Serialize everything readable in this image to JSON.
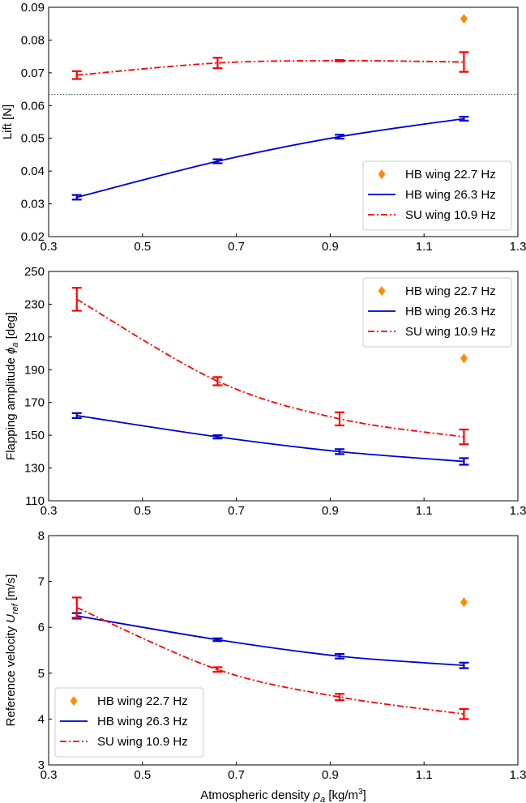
{
  "chart_data": [
    {
      "type": "line",
      "ylabel": "Lift [N]",
      "ylim": [
        0.02,
        0.09
      ],
      "yticks": [
        "0.02",
        "0.03",
        "0.04",
        "0.05",
        "0.06",
        "0.07",
        "0.08",
        "0.09"
      ],
      "xlim": [
        0.3,
        1.3
      ],
      "xticks": [
        "0.3",
        "0.5",
        "0.7",
        "0.9",
        "1.1",
        "1.3"
      ],
      "legend_position": "lower-right",
      "reference_line": 0.0634,
      "series": [
        {
          "name": "HB wing 22.7 Hz",
          "style": "marker",
          "x": [
            1.185
          ],
          "y": [
            0.0865
          ],
          "err": [
            0
          ]
        },
        {
          "name": "HB wing 26.3 Hz",
          "style": "solid",
          "x": [
            0.36,
            0.66,
            0.92,
            1.185
          ],
          "y": [
            0.032,
            0.043,
            0.0505,
            0.056
          ],
          "err": [
            0.0007,
            0.0006,
            0.0006,
            0.0006
          ]
        },
        {
          "name": "SU wing 10.9 Hz",
          "style": "dashdot",
          "x": [
            0.36,
            0.66,
            0.92,
            1.185
          ],
          "y": [
            0.0693,
            0.073,
            0.0737,
            0.0733
          ],
          "err": [
            0.0012,
            0.0016,
            0.0002,
            0.003
          ]
        }
      ]
    },
    {
      "type": "line",
      "ylabel": "Flapping amplitude",
      "ylabel_sym": "ϕ",
      "ylabel_sub": "a",
      "ylabel_unit": "[deg]",
      "ylim": [
        110,
        250
      ],
      "yticks": [
        "110",
        "130",
        "150",
        "170",
        "190",
        "210",
        "230",
        "250"
      ],
      "xlim": [
        0.3,
        1.3
      ],
      "xticks": [
        "0.3",
        "0.5",
        "0.7",
        "0.9",
        "1.1",
        "1.3"
      ],
      "legend_position": "upper-right",
      "series": [
        {
          "name": "HB wing 22.7 Hz",
          "style": "marker",
          "x": [
            1.185
          ],
          "y": [
            197
          ],
          "err": [
            0
          ]
        },
        {
          "name": "HB wing 26.3 Hz",
          "style": "solid",
          "x": [
            0.36,
            0.66,
            0.92,
            1.185
          ],
          "y": [
            162,
            149,
            140,
            134
          ],
          "err": [
            1.5,
            1,
            1.5,
            2
          ]
        },
        {
          "name": "SU wing 10.9 Hz",
          "style": "dashdot",
          "x": [
            0.36,
            0.66,
            0.92,
            1.185
          ],
          "y": [
            233,
            183,
            160,
            149
          ],
          "err": [
            7,
            2.5,
            4,
            4.5
          ]
        }
      ]
    },
    {
      "type": "line",
      "ylabel": "Reference velocity",
      "ylabel_sym": "U",
      "ylabel_sub": "ref",
      "ylabel_unit": "[m/s]",
      "ylim": [
        3,
        8
      ],
      "yticks": [
        "3",
        "4",
        "5",
        "6",
        "7",
        "8"
      ],
      "xlim": [
        0.3,
        1.3
      ],
      "xticks": [
        "0.3",
        "0.5",
        "0.7",
        "0.9",
        "1.1",
        "1.3"
      ],
      "legend_position": "lower-left",
      "xlabel": "Atmospheric density",
      "xlabel_sym": "ρ",
      "xlabel_sub": "a",
      "xlabel_unit": "[kg/m",
      "xlabel_sup": "3",
      "xlabel_end": "]",
      "series": [
        {
          "name": "HB wing 22.7 Hz",
          "style": "marker",
          "x": [
            1.185
          ],
          "y": [
            6.55
          ],
          "err": [
            0
          ]
        },
        {
          "name": "HB wing 26.3 Hz",
          "style": "solid",
          "x": [
            0.36,
            0.66,
            0.92,
            1.185
          ],
          "y": [
            6.25,
            5.73,
            5.37,
            5.17
          ],
          "err": [
            0.06,
            0.03,
            0.05,
            0.06
          ]
        },
        {
          "name": "SU wing 10.9 Hz",
          "style": "dashdot",
          "x": [
            0.36,
            0.66,
            0.92,
            1.185
          ],
          "y": [
            6.43,
            5.08,
            4.48,
            4.11
          ],
          "err": [
            0.22,
            0.05,
            0.07,
            0.11
          ]
        }
      ]
    }
  ],
  "colors": {
    "hb227": "#ff8c00",
    "hb263": "#0000cd",
    "su109": "#ff0000"
  }
}
